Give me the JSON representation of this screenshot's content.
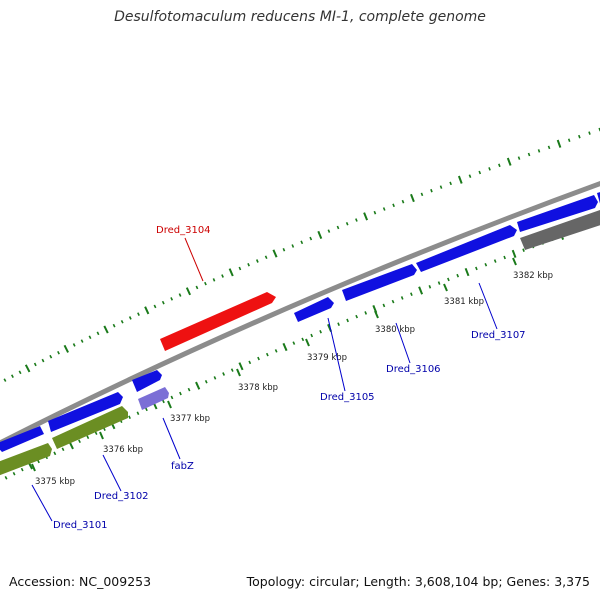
{
  "title": "Desulfotomaculum reducens MI-1, complete genome",
  "footer": {
    "accession": "Accession: NC_009253",
    "summary": "Topology: circular; Length: 3,608,104 bp; Genes: 3,375"
  },
  "colors": {
    "backbone": "#8c8c8c",
    "ticks": "#1a7a1a",
    "gene_blue": "#1010e0",
    "gene_red": "#ee1111",
    "gene_green": "#6b8e23",
    "gene_gray": "#666666",
    "gene_violet": "#7b6fd6",
    "label_blue": "#0000aa",
    "label_red": "#cc0000",
    "kbp_label": "#222222"
  },
  "scale_labels": [
    {
      "id": "kbp-3375",
      "text": "3375 kbp",
      "tick": "kbp-3375"
    },
    {
      "id": "kbp-3376",
      "text": "3376 kbp",
      "tick": "kbp-3376"
    },
    {
      "id": "kbp-3377",
      "text": "3377 kbp",
      "tick": "kbp-3377"
    },
    {
      "id": "kbp-3378",
      "text": "3378 kbp",
      "tick": "kbp-3378"
    },
    {
      "id": "kbp-3379",
      "text": "3379 kbp",
      "tick": "kbp-3379"
    },
    {
      "id": "kbp-3380",
      "text": "3380 kbp",
      "tick": "kbp-3380"
    },
    {
      "id": "kbp-3381",
      "text": "3381 kbp",
      "tick": "kbp-3381"
    },
    {
      "id": "kbp-3382",
      "text": "3382 kbp",
      "tick": "kbp-3382"
    }
  ],
  "genes": [
    {
      "id": "dred-3101",
      "name": "Dred_3101",
      "color": "gene_green",
      "strand": "reverse"
    },
    {
      "id": "dred-3102",
      "name": "Dred_3102",
      "color": "gene_green",
      "strand": "reverse"
    },
    {
      "id": "fabz",
      "name": "fabZ",
      "color": "gene_violet",
      "strand": "reverse"
    },
    {
      "id": "dred-3104",
      "name": "Dred_3104",
      "color": "gene_red",
      "strand": "forward"
    },
    {
      "id": "dred-3105",
      "name": "Dred_3105",
      "color": "gene_blue",
      "strand": "forward"
    },
    {
      "id": "dred-3106",
      "name": "Dred_3106",
      "color": "gene_blue",
      "strand": "forward"
    },
    {
      "id": "dred-3107",
      "name": "Dred_3107",
      "color": "gene_blue",
      "strand": "forward"
    },
    {
      "id": "gene-gray-right",
      "name": "",
      "color": "gene_gray",
      "strand": "reverse"
    }
  ]
}
